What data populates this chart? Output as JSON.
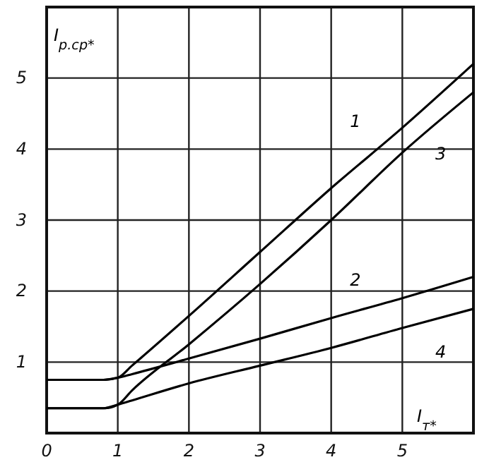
{
  "chart_data": {
    "type": "line",
    "xlabel": "I$_{т*}$",
    "ylabel": "I$_{р.ср*}$",
    "xlim": [
      0,
      6
    ],
    "ylim": [
      0,
      6
    ],
    "xticks": [
      0,
      1,
      2,
      3,
      4,
      5
    ],
    "yticks": [
      1,
      2,
      3,
      4,
      5
    ],
    "grid": true,
    "legend": false,
    "line_style": "solid",
    "marker": "none",
    "x": [
      0,
      0.8,
      1,
      1.2,
      2,
      3,
      4,
      5,
      6
    ],
    "series": [
      {
        "name": "1",
        "color": "#000000",
        "values": [
          0.75,
          0.75,
          0.78,
          0.95,
          1.65,
          2.55,
          3.45,
          4.3,
          5.2
        ]
      },
      {
        "name": "2",
        "color": "#000000",
        "values": [
          0.75,
          0.75,
          0.78,
          0.83,
          1.05,
          1.33,
          1.62,
          1.9,
          2.2
        ]
      },
      {
        "name": "3",
        "color": "#000000",
        "values": [
          0.35,
          0.35,
          0.4,
          0.6,
          1.25,
          2.1,
          3.0,
          3.95,
          4.8
        ]
      },
      {
        "name": "4",
        "color": "#000000",
        "values": [
          0.35,
          0.35,
          0.4,
          0.46,
          0.7,
          0.95,
          1.2,
          1.48,
          1.75
        ]
      }
    ]
  }
}
